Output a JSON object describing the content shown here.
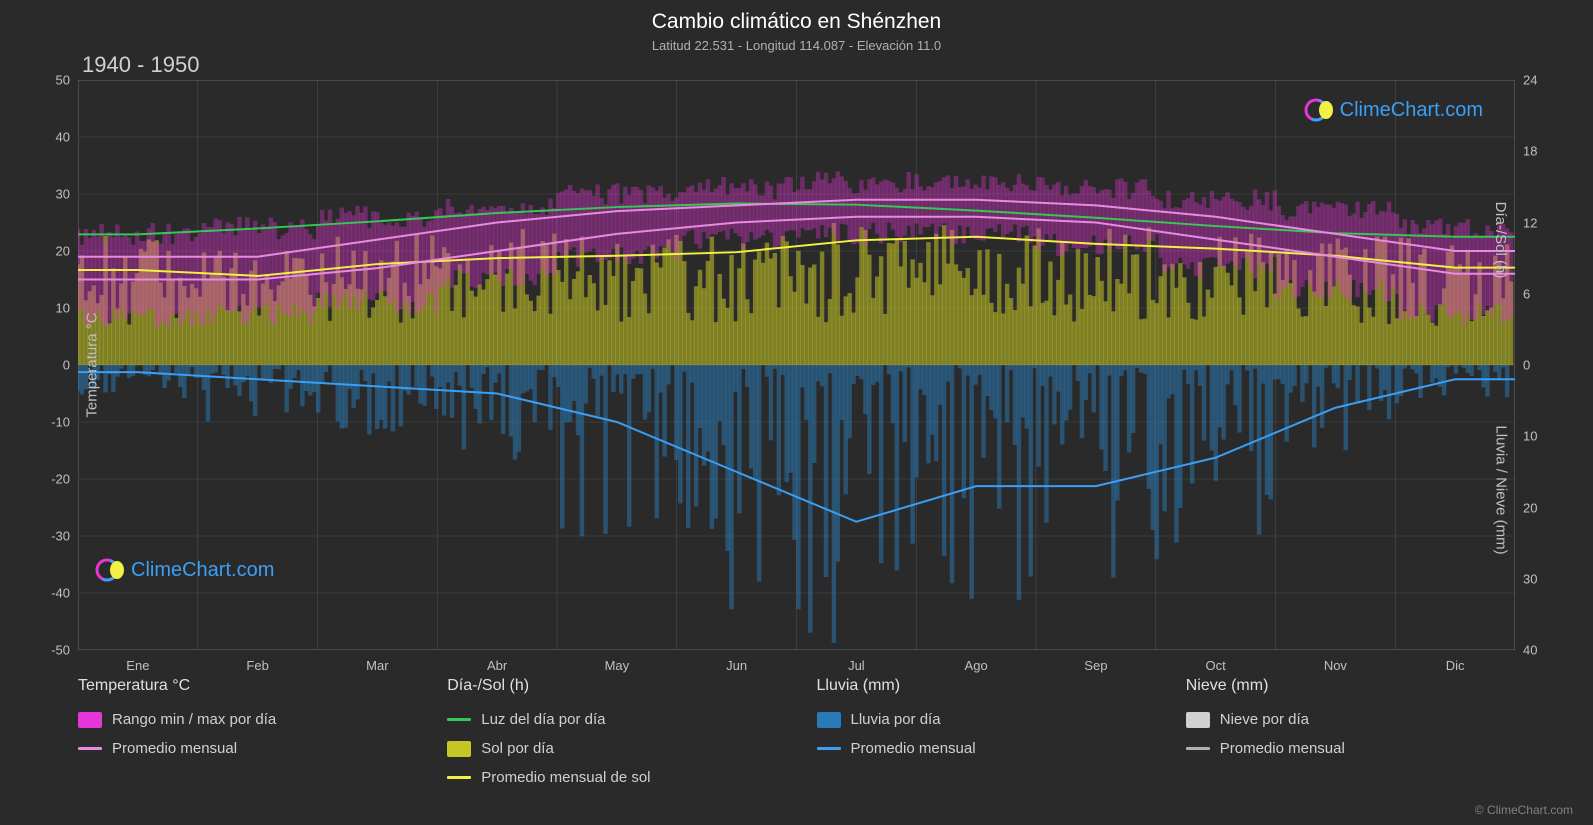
{
  "title": "Cambio climático en Shénzhen",
  "subtitle": "Latitud 22.531 - Longitud 114.087 - Elevación 11.0",
  "period": "1940 - 1950",
  "watermark_text": "ClimeChart.com",
  "copyright": "© ClimeChart.com",
  "colors": {
    "background": "#2a2a2a",
    "grid": "#6a6a6a",
    "text": "#e0e0e0",
    "text_muted": "#b0b0b0",
    "temp_range": "#e835d8",
    "temp_avg": "#e88ae0",
    "daylight": "#35c855",
    "sun_fill": "#c5c525",
    "sun_avg": "#f0f045",
    "rain_fill": "#2a7ab8",
    "rain_avg": "#3a9ff5",
    "snow_fill": "#d0d0d0",
    "snow_avg": "#b0b0b0",
    "watermark": "#3a9ff5"
  },
  "axes": {
    "y_left": {
      "label": "Temperatura °C",
      "min": -50,
      "max": 50,
      "step": 10,
      "ticks": [
        50,
        40,
        30,
        20,
        10,
        0,
        -10,
        -20,
        -30,
        -40,
        -50
      ]
    },
    "y_right_top": {
      "label": "Día-/Sol (h)",
      "min": 0,
      "max": 24,
      "step": 6,
      "ticks": [
        24,
        18,
        12,
        6,
        0
      ]
    },
    "y_right_bottom": {
      "label": "Lluvia / Nieve (mm)",
      "min": 0,
      "max": 40,
      "step": 10,
      "ticks": [
        0,
        10,
        20,
        30,
        40
      ]
    },
    "x": {
      "labels": [
        "Ene",
        "Feb",
        "Mar",
        "Abr",
        "May",
        "Jun",
        "Jul",
        "Ago",
        "Sep",
        "Oct",
        "Nov",
        "Dic"
      ]
    }
  },
  "series": {
    "temp_avg_min": [
      15,
      15,
      17,
      20,
      23,
      25,
      26,
      26,
      25,
      22,
      19,
      16
    ],
    "temp_avg_max": [
      19,
      19,
      22,
      25,
      27,
      28,
      29,
      29,
      28,
      26,
      23,
      20
    ],
    "temp_range_min": [
      8,
      9,
      11,
      15,
      19,
      22,
      23,
      23,
      21,
      17,
      13,
      9
    ],
    "temp_range_max": [
      23,
      24,
      26,
      28,
      30,
      31,
      32,
      32,
      31,
      29,
      27,
      24
    ],
    "daylight": [
      11.0,
      11.5,
      12.1,
      12.8,
      13.3,
      13.6,
      13.5,
      13.0,
      12.4,
      11.7,
      11.1,
      10.8
    ],
    "sun_avg": [
      8.0,
      7.5,
      8.5,
      9.0,
      9.2,
      9.5,
      10.5,
      10.8,
      10.2,
      9.8,
      9.2,
      8.2
    ],
    "sun_fill_max": [
      11,
      10,
      11,
      11.5,
      11.5,
      11.5,
      12,
      12,
      11.8,
      11.5,
      11.2,
      11
    ],
    "rain_avg": [
      1,
      2,
      3,
      4,
      8,
      15,
      22,
      17,
      17,
      13,
      6,
      2
    ],
    "rain_fill_max": [
      5,
      8,
      10,
      15,
      25,
      35,
      40,
      35,
      30,
      25,
      12,
      5
    ]
  },
  "legend": {
    "col1": {
      "header": "Temperatura °C",
      "items": [
        {
          "type": "swatch",
          "color_key": "temp_range",
          "label": "Rango min / max por día"
        },
        {
          "type": "line",
          "color_key": "temp_avg",
          "label": "Promedio mensual"
        }
      ]
    },
    "col2": {
      "header": "Día-/Sol (h)",
      "items": [
        {
          "type": "line",
          "color_key": "daylight",
          "label": "Luz del día por día"
        },
        {
          "type": "swatch",
          "color_key": "sun_fill",
          "label": "Sol por día"
        },
        {
          "type": "line",
          "color_key": "sun_avg",
          "label": "Promedio mensual de sol"
        }
      ]
    },
    "col3": {
      "header": "Lluvia (mm)",
      "items": [
        {
          "type": "swatch",
          "color_key": "rain_fill",
          "label": "Lluvia por día"
        },
        {
          "type": "line",
          "color_key": "rain_avg",
          "label": "Promedio mensual"
        }
      ]
    },
    "col4": {
      "header": "Nieve (mm)",
      "items": [
        {
          "type": "swatch",
          "color_key": "snow_fill",
          "label": "Nieve por día"
        },
        {
          "type": "line",
          "color_key": "snow_avg",
          "label": "Promedio mensual"
        }
      ]
    }
  }
}
